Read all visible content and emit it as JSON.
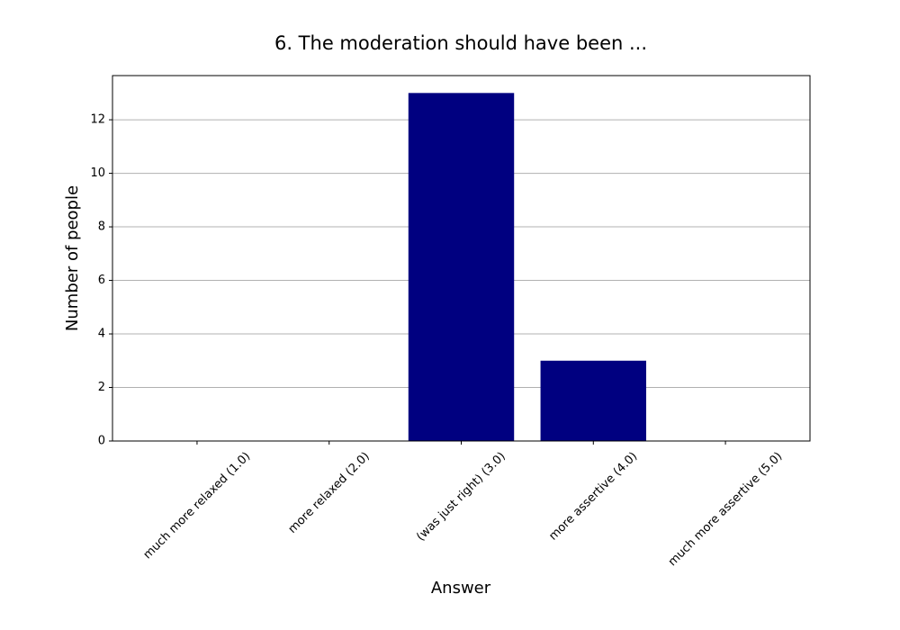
{
  "chart_data": {
    "type": "bar",
    "title": "6. The moderation should have been ...",
    "xlabel": "Answer",
    "ylabel": "Number of people",
    "categories": [
      "much more relaxed (1.0)",
      "more relaxed (2.0)",
      "(was just right) (3.0)",
      "more assertive (4.0)",
      "much more assertive (5.0)"
    ],
    "values": [
      0,
      0,
      13,
      3,
      0
    ],
    "color": "#000080",
    "ylim": [
      0,
      13.65
    ],
    "yticks": [
      0,
      2,
      4,
      6,
      8,
      10,
      12
    ],
    "grid": true
  }
}
